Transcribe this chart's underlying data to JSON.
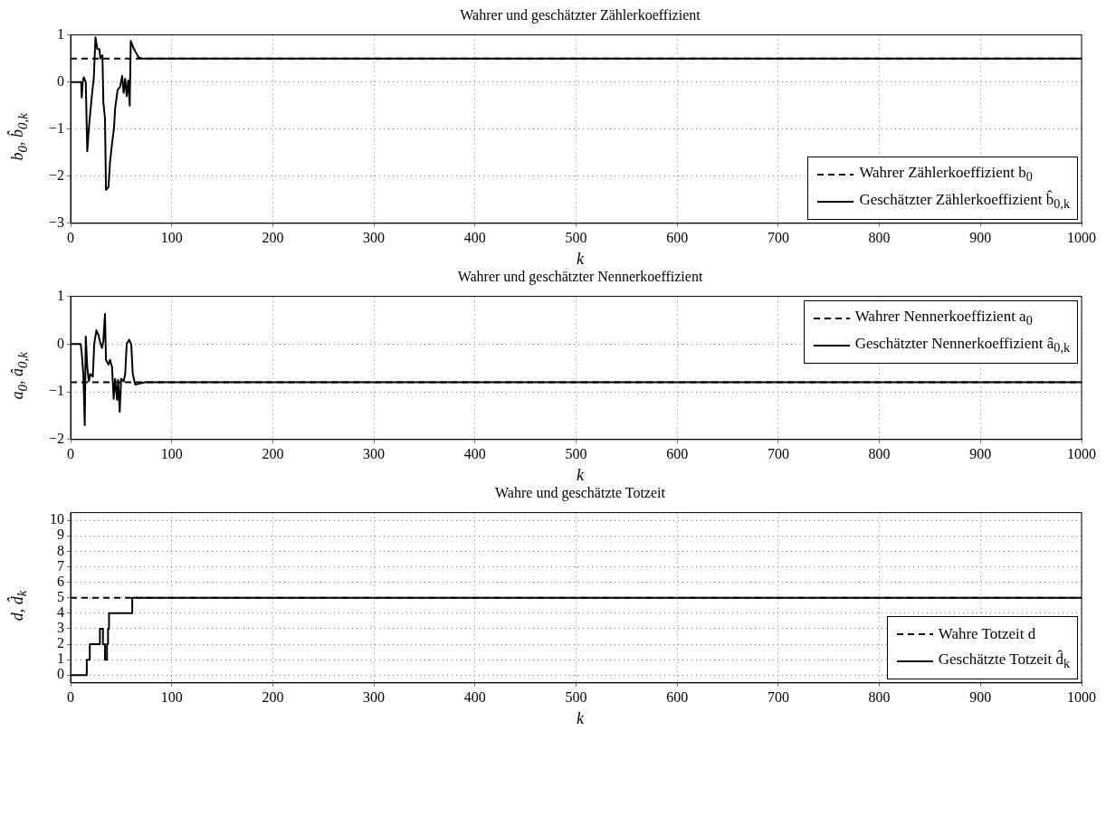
{
  "chart_data": [
    {
      "type": "line",
      "title": "Wahrer und geschätzter Zählerkoeffizient",
      "xlabel": "k",
      "ylabel": "b$_{0}$, b̂$_{0,k}$",
      "xlim": [
        0,
        1000
      ],
      "xticks": [
        0,
        100,
        200,
        300,
        400,
        500,
        600,
        700,
        800,
        900,
        1000
      ],
      "ylim": [
        -3,
        1
      ],
      "yticks": [
        -3,
        -2,
        -1,
        0,
        1
      ],
      "grid": true,
      "legend": "bottom right",
      "series": [
        {
          "name": "Wahrer Zählerkoeffizient b$_{0}$",
          "color": "#000000",
          "line_style": "dashed",
          "x": [
            0,
            1000
          ],
          "values": [
            0.5,
            0.5
          ]
        },
        {
          "name": "Geschätzter Zählerkoeffizient b̂$_{0,k}$",
          "color": "#000000",
          "line_style": "solid",
          "x": [
            0,
            10.5,
            11,
            12,
            13,
            15,
            16.5,
            18,
            21,
            23,
            24.6,
            26.4,
            28.5,
            29.4,
            31.5,
            32.4,
            34,
            35,
            37.5,
            39,
            41,
            43,
            44,
            46.5,
            49,
            51,
            52.5,
            54,
            55.5,
            57,
            58.5,
            59.5,
            62,
            64.5,
            67,
            70.5,
            1000
          ],
          "values": [
            0,
            0,
            -0.33,
            0,
            0.1,
            0,
            -1.47,
            -1,
            -0.3,
            0.1,
            0.95,
            0.7,
            0.7,
            0.5,
            0.57,
            -0.43,
            -0.77,
            -2.29,
            -2.23,
            -1.7,
            -1.3,
            -0.97,
            -0.57,
            -0.17,
            -0.1,
            0.13,
            -0.23,
            0.07,
            -0.3,
            0.03,
            -0.5,
            0.87,
            0.73,
            0.63,
            0.53,
            0.5,
            0.5
          ]
        }
      ]
    },
    {
      "type": "line",
      "title": "Wahrer und geschätzter Nennerkoeffizient",
      "xlabel": "k",
      "ylabel": "a$_{0}$, â$_{0,k}$",
      "xlim": [
        0,
        1000
      ],
      "xticks": [
        0,
        100,
        200,
        300,
        400,
        500,
        600,
        700,
        800,
        900,
        1000
      ],
      "ylim": [
        -2,
        1
      ],
      "yticks": [
        -2,
        -1,
        0,
        1
      ],
      "grid": true,
      "legend": "top right",
      "series": [
        {
          "name": "Wahrer Nennerkoeffizient a$_{0}$",
          "color": "#000000",
          "line_style": "dashed",
          "x": [
            0,
            1000
          ],
          "values": [
            -0.8,
            -0.8
          ]
        },
        {
          "name": "Geschätzter Nennerkoeffizient â$_{0,k}$",
          "color": "#000000",
          "line_style": "solid",
          "x": [
            0,
            10,
            11,
            12.6,
            14,
            15,
            16.5,
            18,
            19.5,
            22,
            23.4,
            25.5,
            27.6,
            29,
            31,
            32.4,
            34,
            35,
            37.5,
            39,
            41,
            42.6,
            44,
            46,
            47,
            48.6,
            50,
            52.5,
            54,
            55.5,
            58,
            60,
            61.5,
            64,
            67.6,
            73.6,
            1000
          ],
          "values": [
            0,
            0,
            -0.18,
            -0.63,
            -1.7,
            0.16,
            -0.48,
            -0.78,
            -0.63,
            -0.68,
            0.01,
            0.29,
            0.19,
            0.06,
            -0.08,
            0.06,
            0.63,
            -0.33,
            -0.43,
            -0.33,
            -0.48,
            -1.15,
            -0.73,
            -1.17,
            -0.75,
            -1.42,
            -0.73,
            -0.78,
            -0.63,
            0.01,
            0.09,
            -0.01,
            -0.63,
            -0.85,
            -0.83,
            -0.8,
            -0.8
          ]
        }
      ]
    },
    {
      "type": "step",
      "title": "Wahre und geschätzte Totzeit",
      "xlabel": "k",
      "ylabel": "d, d̂$_{k}$",
      "xlim": [
        0,
        1000
      ],
      "xticks": [
        0,
        100,
        200,
        300,
        400,
        500,
        600,
        700,
        800,
        900,
        1000
      ],
      "ylim": [
        -0.5,
        10.5
      ],
      "yticks": [
        0,
        1,
        2,
        3,
        4,
        5,
        6,
        7,
        8,
        9,
        10
      ],
      "grid": true,
      "legend": "bottom right",
      "series": [
        {
          "name": "Wahre Totzeit d",
          "color": "#000000",
          "line_style": "dashed",
          "x": [
            0,
            1000
          ],
          "values": [
            5,
            5
          ]
        },
        {
          "name": "Geschätzte Totzeit d̂$_{k}$",
          "color": "#000000",
          "line_style": "solid",
          "x": [
            0,
            16,
            19,
            29,
            32,
            34,
            36,
            37,
            38,
            61,
            1000
          ],
          "values": [
            0,
            1,
            2,
            3,
            2,
            1,
            2,
            3,
            4,
            5,
            5
          ]
        }
      ]
    }
  ]
}
